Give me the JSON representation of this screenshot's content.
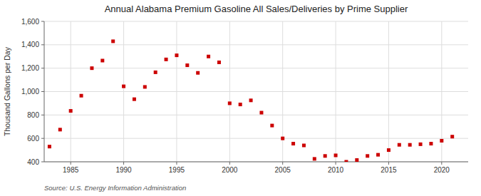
{
  "chart_data": {
    "type": "scatter",
    "title": "Annual Alabama Premium Gasoline All Sales/Deliveries by Prime Supplier",
    "ylabel": "Thousand Gallons per Day",
    "source": "Source: U.S. Energy Information Administration",
    "x": [
      1983,
      1984,
      1985,
      1986,
      1987,
      1988,
      1989,
      1990,
      1991,
      1992,
      1993,
      1994,
      1995,
      1996,
      1997,
      1998,
      1999,
      2000,
      2001,
      2002,
      2003,
      2004,
      2005,
      2006,
      2007,
      2008,
      2009,
      2010,
      2011,
      2012,
      2013,
      2014,
      2015,
      2016,
      2017,
      2018,
      2019,
      2020,
      2021
    ],
    "values": [
      530,
      675,
      835,
      965,
      1200,
      1265,
      1430,
      1045,
      935,
      1040,
      1165,
      1275,
      1310,
      1225,
      1160,
      1300,
      1250,
      900,
      890,
      925,
      820,
      710,
      600,
      555,
      540,
      425,
      450,
      455,
      400,
      415,
      450,
      460,
      500,
      545,
      545,
      550,
      555,
      580,
      615
    ],
    "color": "#cc0000",
    "marker": "square",
    "xlim": [
      1982.5,
      2022.5
    ],
    "xticks": [
      1985,
      1990,
      1995,
      2000,
      2005,
      2010,
      2015,
      2020
    ],
    "ylim": [
      400,
      1600
    ],
    "yticks": [
      400,
      600,
      800,
      {
        "value": 1000,
        "label": "1,000"
      },
      {
        "value": 1200,
        "label": "1,200"
      },
      {
        "value": 1400,
        "label": "1,400"
      },
      {
        "value": 1600,
        "label": "1,600"
      }
    ],
    "grid": true
  }
}
